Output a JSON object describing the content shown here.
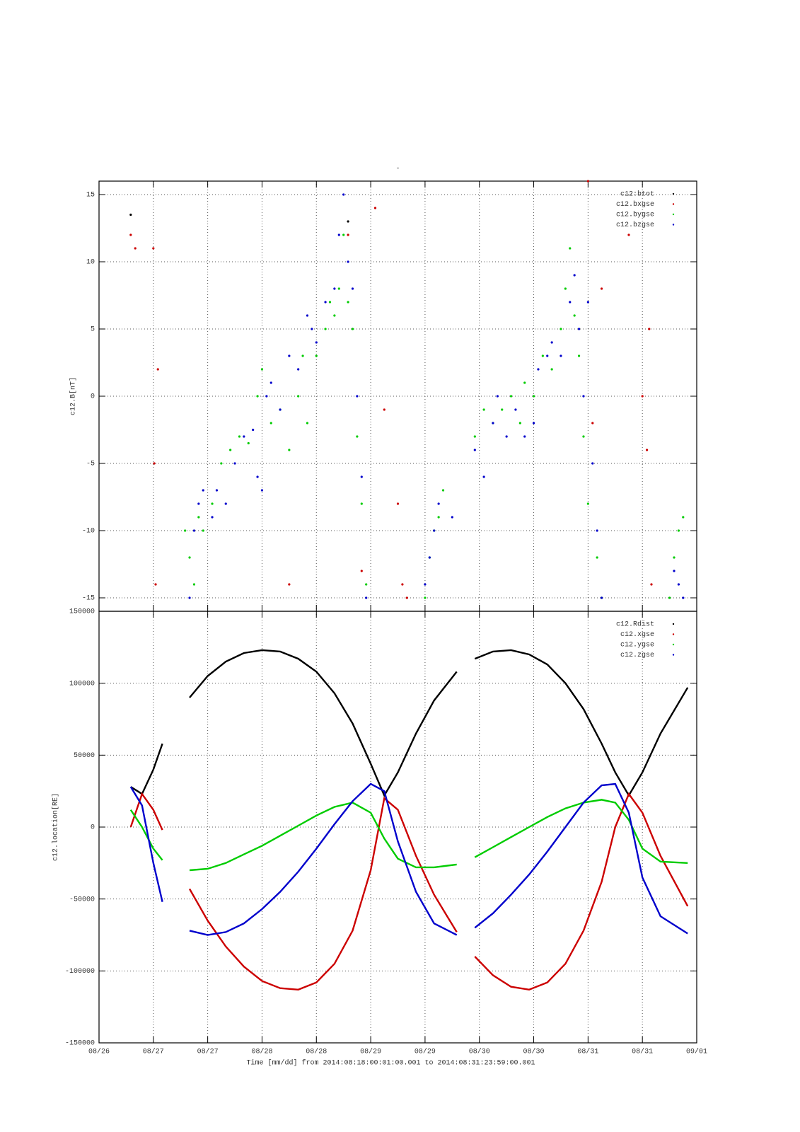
{
  "chart_data": [
    {
      "type": "scatter",
      "title": "-",
      "ylabel": "c12.B[nT]",
      "xlim": [
        0,
        132
      ],
      "xticks": [
        0,
        12,
        24,
        36,
        48,
        60,
        72,
        84,
        96,
        108,
        120,
        132
      ],
      "ylim": [
        -16,
        16
      ],
      "yticks": [
        -15,
        -10,
        -5,
        0,
        5,
        10,
        15
      ],
      "grid": true,
      "legend": "top-right",
      "series": [
        {
          "name": "c12:btot",
          "color": "#000000",
          "x": [
            7,
            55
          ],
          "values": [
            13.5,
            13
          ]
        },
        {
          "name": "c12.bxgse",
          "color": "#cc0000",
          "x": [
            7,
            8,
            12,
            12.2,
            13,
            12.5,
            42,
            55,
            58,
            61,
            63,
            66,
            67,
            68,
            108,
            109,
            111,
            117,
            120,
            121,
            122,
            121.5
          ],
          "values": [
            12,
            11,
            11,
            -5,
            2,
            -14,
            -14,
            12,
            -13,
            14,
            -1,
            -8,
            -14,
            -15,
            16,
            -2,
            8,
            12,
            0,
            -4,
            -14,
            5
          ]
        },
        {
          "name": "c12.bygse",
          "color": "#00cc00",
          "x": [
            19,
            20,
            21,
            22,
            23,
            25,
            27,
            29,
            31,
            33,
            35,
            36,
            38,
            40,
            42,
            44,
            45,
            46,
            48,
            50,
            51,
            52,
            53,
            54,
            55,
            56,
            57,
            58,
            59,
            72,
            73,
            74,
            75,
            76,
            83,
            85,
            87,
            89,
            91,
            93,
            94,
            96,
            98,
            100,
            102,
            103,
            104,
            105,
            106,
            107,
            108,
            110,
            111,
            126,
            127,
            128,
            129
          ],
          "values": [
            -10,
            -12,
            -14,
            -9,
            -10,
            -8,
            -5,
            -4,
            -3,
            -3.5,
            0,
            2,
            -2,
            -1,
            -4,
            0,
            3,
            -2,
            3,
            5,
            7,
            6,
            8,
            12,
            7,
            5,
            -3,
            -8,
            -14,
            -15,
            -12,
            -10,
            -9,
            -7,
            -3,
            -1,
            -2,
            -1,
            0,
            -2,
            1,
            0,
            3,
            2,
            5,
            8,
            11,
            6,
            3,
            -3,
            -8,
            -12,
            -15,
            -15,
            -12,
            -10,
            -9
          ]
        },
        {
          "name": "c12.bzgse",
          "color": "#0000cc",
          "x": [
            20,
            21,
            22,
            23,
            25,
            26,
            28,
            30,
            32,
            34,
            35,
            36,
            37,
            38,
            40,
            42,
            44,
            46,
            47,
            48,
            50,
            52,
            53,
            54,
            55,
            56,
            57,
            58,
            59,
            72,
            73,
            74,
            75,
            78,
            83,
            85,
            87,
            88,
            90,
            92,
            94,
            96,
            97,
            99,
            100,
            102,
            104,
            105,
            106,
            107,
            108,
            109,
            110,
            111,
            127,
            128,
            129
          ],
          "values": [
            -15,
            -10,
            -8,
            -7,
            -9,
            -7,
            -8,
            -5,
            -3,
            -2.5,
            -6,
            -7,
            0,
            1,
            -1,
            3,
            2,
            6,
            5,
            4,
            7,
            8,
            12,
            15,
            10,
            8,
            0,
            -6,
            -15,
            -14,
            -12,
            -10,
            -8,
            -9,
            -4,
            -6,
            -2,
            0,
            -3,
            -1,
            -3,
            -2,
            2,
            3,
            4,
            3,
            7,
            9,
            5,
            0,
            7,
            -5,
            -10,
            -15,
            -13,
            -14,
            -15
          ]
        }
      ]
    },
    {
      "type": "line",
      "ylabel": "c12.location[RE]",
      "xlabel": "Time [mm/dd]  from 2014:08:18:00:01:00.001  to  2014:08:31:23:59:00.001",
      "xlim": [
        0,
        132
      ],
      "xticks": [
        {
          "value": 0,
          "label": "08/26"
        },
        {
          "value": 12,
          "label": "08/27"
        },
        {
          "value": 24,
          "label": "08/27"
        },
        {
          "value": 36,
          "label": "08/28"
        },
        {
          "value": 48,
          "label": "08/28"
        },
        {
          "value": 60,
          "label": "08/29"
        },
        {
          "value": 72,
          "label": "08/29"
        },
        {
          "value": 84,
          "label": "08/30"
        },
        {
          "value": 96,
          "label": "08/30"
        },
        {
          "value": 108,
          "label": "08/31"
        },
        {
          "value": 120,
          "label": "08/31"
        },
        {
          "value": 132,
          "label": "09/01"
        }
      ],
      "ylim": [
        -150000,
        150000
      ],
      "yticks": [
        -150000,
        -100000,
        -50000,
        0,
        50000,
        100000,
        150000
      ],
      "grid": true,
      "legend": "top-right",
      "x": [
        7,
        9.5,
        12,
        14,
        17,
        20,
        24,
        28,
        32,
        36,
        40,
        44,
        48,
        52,
        56,
        60,
        63,
        66,
        70,
        74,
        79,
        81,
        83,
        87,
        91,
        95,
        99,
        103,
        107,
        111,
        114,
        117,
        120,
        124,
        130
      ],
      "series": [
        {
          "name": "c12.Rdist",
          "color": "#000000",
          "values": [
            28000,
            23000,
            40000,
            58000,
            null,
            90000,
            105000,
            115000,
            121000,
            123000,
            122000,
            117000,
            108000,
            93000,
            72000,
            44000,
            22000,
            38000,
            65000,
            88000,
            108000,
            null,
            117000,
            122000,
            123000,
            120000,
            113000,
            100000,
            82000,
            58000,
            38000,
            22000,
            38000,
            65000,
            97000
          ]
        },
        {
          "name": "c12.xgse",
          "color": "#cc0000",
          "values": [
            0,
            23000,
            12000,
            -2000,
            null,
            -43000,
            -65000,
            -83000,
            -97000,
            -107000,
            -112000,
            -113000,
            -108000,
            -95000,
            -72000,
            -30000,
            20000,
            12000,
            -20000,
            -47000,
            -73000,
            null,
            -90000,
            -103000,
            -111000,
            -113000,
            -108000,
            -95000,
            -72000,
            -38000,
            0,
            23000,
            10000,
            -20000,
            -55000
          ]
        },
        {
          "name": "c12.ygse",
          "color": "#00cc00",
          "values": [
            12000,
            0,
            -15000,
            -23000,
            null,
            -30000,
            -29000,
            -25000,
            -19000,
            -13000,
            -6000,
            1000,
            8000,
            14000,
            17000,
            10000,
            -8000,
            -22000,
            -28000,
            -28000,
            -26000,
            null,
            -21000,
            -14000,
            -7000,
            0,
            7000,
            13000,
            17000,
            19000,
            17000,
            5000,
            -15000,
            -24000,
            -25000
          ]
        },
        {
          "name": "c12.zgse",
          "color": "#0000cc",
          "values": [
            28000,
            15000,
            -25000,
            -52000,
            null,
            -72000,
            -75000,
            -73000,
            -67000,
            -57000,
            -45000,
            -31000,
            -15000,
            2000,
            18000,
            30000,
            25000,
            -10000,
            -45000,
            -67000,
            -75000,
            null,
            -70000,
            -60000,
            -47000,
            -33000,
            -17000,
            0,
            17000,
            29000,
            30000,
            10000,
            -35000,
            -62000,
            -74000
          ]
        }
      ]
    }
  ]
}
